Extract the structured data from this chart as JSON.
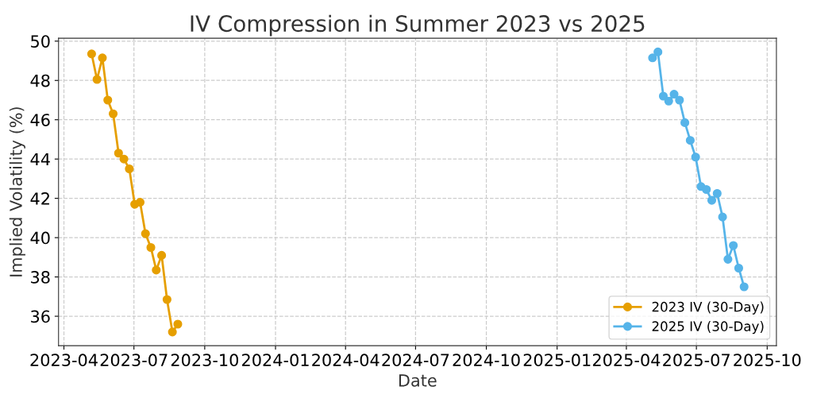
{
  "chart_data": {
    "type": "line",
    "title": "IV Compression in Summer 2023 vs 2025",
    "xlabel": "Date",
    "ylabel": "Implied Volatility (%)",
    "series": [
      {
        "name": "2023 IV (30-Day)",
        "color": "#e69f00",
        "x": [
          "2023-05-07",
          "2023-05-14",
          "2023-05-21",
          "2023-05-28",
          "2023-06-04",
          "2023-06-11",
          "2023-06-18",
          "2023-06-25",
          "2023-07-02",
          "2023-07-09",
          "2023-07-16",
          "2023-07-23",
          "2023-07-30",
          "2023-08-06",
          "2023-08-13",
          "2023-08-20",
          "2023-08-27"
        ],
        "values": [
          49.35,
          48.05,
          49.15,
          47.0,
          46.3,
          44.3,
          44.0,
          43.5,
          41.7,
          41.8,
          40.2,
          39.5,
          38.35,
          39.1,
          36.85,
          35.2,
          35.6
        ]
      },
      {
        "name": "2025 IV (30-Day)",
        "color": "#56b4e9",
        "x": [
          "2025-05-05",
          "2025-05-12",
          "2025-05-19",
          "2025-05-26",
          "2025-06-02",
          "2025-06-09",
          "2025-06-16",
          "2025-06-23",
          "2025-06-30",
          "2025-07-07",
          "2025-07-14",
          "2025-07-21",
          "2025-07-28",
          "2025-08-04",
          "2025-08-11",
          "2025-08-18",
          "2025-08-25",
          "2025-09-01"
        ],
        "values": [
          49.15,
          49.45,
          47.2,
          46.95,
          47.3,
          47.0,
          45.85,
          44.95,
          44.1,
          42.6,
          42.45,
          41.9,
          42.25,
          41.05,
          38.9,
          39.6,
          38.45,
          37.5
        ]
      }
    ],
    "xlim": [
      "2023-03-25",
      "2025-10-13"
    ],
    "xticks": [
      "2023-04",
      "2023-07",
      "2023-10",
      "2024-01",
      "2024-04",
      "2024-07",
      "2024-10",
      "2025-01",
      "2025-04",
      "2025-07",
      "2025-10"
    ],
    "ylim": [
      34.5,
      50.15
    ],
    "yticks": [
      36,
      38,
      40,
      42,
      44,
      46,
      48,
      50
    ],
    "grid": true,
    "legend": "bottom right",
    "marker": "circle",
    "line_style": "solid"
  }
}
